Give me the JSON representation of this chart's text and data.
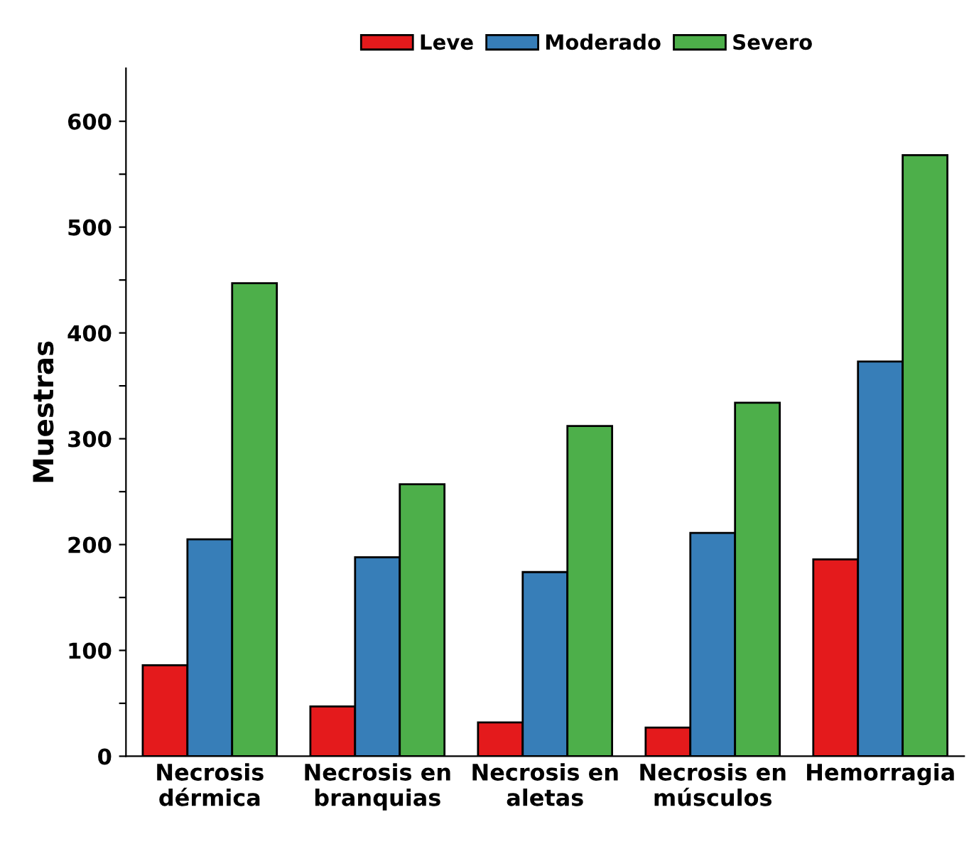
{
  "chart_data": {
    "type": "bar",
    "ylabel": "Muestras",
    "categories": [
      "Necrosis\ndérmica",
      "Necrosis en\nbranquias",
      "Necrosis en\naletas",
      "Necrosis en\nmúsculos",
      "Hemorragia"
    ],
    "series": [
      {
        "name": "Leve",
        "color": "#e41a1c",
        "values": [
          86,
          47,
          32,
          27,
          186
        ]
      },
      {
        "name": "Moderado",
        "color": "#377eb8",
        "values": [
          205,
          188,
          174,
          211,
          373
        ]
      },
      {
        "name": "Severo",
        "color": "#4daf4a",
        "values": [
          447,
          257,
          312,
          334,
          568
        ]
      }
    ],
    "ylim": [
      0,
      650
    ],
    "yticks": [
      0,
      {
        "value": 50,
        "label": null
      },
      100,
      {
        "value": 150,
        "label": null
      },
      200,
      {
        "value": 250,
        "label": null
      },
      300,
      {
        "value": 350,
        "label": null
      },
      400,
      {
        "value": 450,
        "label": null
      },
      500,
      {
        "value": 550,
        "label": null
      },
      600
    ],
    "grid": false,
    "legend": "top"
  }
}
